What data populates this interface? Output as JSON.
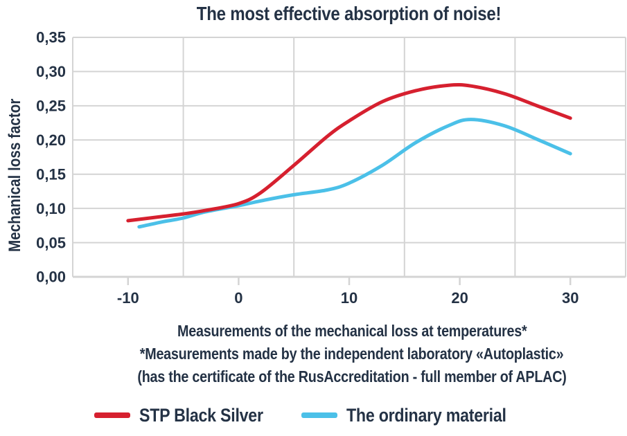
{
  "title": "The most effective absorption of noise!",
  "colors": {
    "background": "#ffffff",
    "text": "#243245",
    "grid": "#d4d4d4",
    "red": "#d6202f",
    "blue": "#4bc0e8"
  },
  "chart_data": {
    "type": "line",
    "title": "The most effective absorption of noise!",
    "xlabel": "",
    "ylabel": "Mechanical loss factor",
    "xlim": [
      -15,
      35
    ],
    "ylim": [
      0,
      0.35
    ],
    "grid": true,
    "legend_position": "bottom",
    "x_ticks": [
      -10,
      0,
      10,
      20,
      30
    ],
    "x_tick_labels": [
      "-10",
      "0",
      "10",
      "20",
      "30"
    ],
    "x_grid": [
      -15,
      -5,
      5,
      15,
      25,
      35
    ],
    "y_ticks": [
      0,
      0.05,
      0.1,
      0.15,
      0.2,
      0.25,
      0.3,
      0.35
    ],
    "y_tick_labels": [
      "0,00",
      "0,05",
      "0,10",
      "0,15",
      "0,20",
      "0,25",
      "0,30",
      "0,35"
    ],
    "series": [
      {
        "name": "STP Black Silver",
        "color": "#d6202f",
        "points": [
          [
            -10,
            0.082
          ],
          [
            -7,
            0.088
          ],
          [
            -5,
            0.092
          ],
          [
            -3,
            0.097
          ],
          [
            0,
            0.107
          ],
          [
            2,
            0.123
          ],
          [
            5,
            0.163
          ],
          [
            8,
            0.205
          ],
          [
            10,
            0.228
          ],
          [
            13,
            0.256
          ],
          [
            16,
            0.272
          ],
          [
            19,
            0.28
          ],
          [
            21,
            0.279
          ],
          [
            24,
            0.268
          ],
          [
            27,
            0.25
          ],
          [
            30,
            0.232
          ]
        ]
      },
      {
        "name": "The ordinary material",
        "color": "#4bc0e8",
        "points": [
          [
            -9,
            0.073
          ],
          [
            -7,
            0.08
          ],
          [
            -5,
            0.086
          ],
          [
            -3,
            0.095
          ],
          [
            0,
            0.104
          ],
          [
            2,
            0.111
          ],
          [
            5,
            0.12
          ],
          [
            8,
            0.127
          ],
          [
            10,
            0.137
          ],
          [
            13,
            0.163
          ],
          [
            16,
            0.196
          ],
          [
            19,
            0.221
          ],
          [
            21,
            0.23
          ],
          [
            24,
            0.221
          ],
          [
            27,
            0.201
          ],
          [
            30,
            0.18
          ]
        ]
      }
    ]
  },
  "caption": {
    "lines": [
      "Measurements of the mechanical loss at temperatures*",
      "*Measurements made by the independent laboratory «Autoplastic»",
      "(has the certificate of the RusAccreditation - full member of APLAC)"
    ]
  },
  "legend": {
    "items": [
      {
        "label": "STP Black Silver",
        "color": "#d6202f"
      },
      {
        "label": "The ordinary material",
        "color": "#4bc0e8"
      }
    ]
  }
}
